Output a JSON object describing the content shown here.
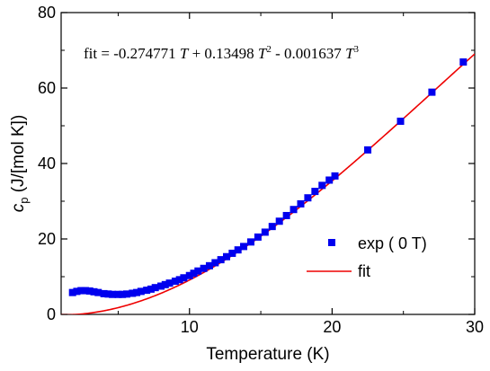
{
  "chart_data": {
    "type": "scatter",
    "xlabel": "Temperature (K)",
    "ylabel": {
      "symbol": "c",
      "subscript": "p",
      "units": " (J/[mol K])"
    },
    "xlim": [
      1,
      30
    ],
    "ylim": [
      0,
      80
    ],
    "x_ticks": [
      {
        "value": 10,
        "label": "10"
      },
      {
        "value": 20,
        "label": "20"
      },
      {
        "value": 30,
        "label": "30"
      }
    ],
    "y_ticks": [
      {
        "value": 0,
        "label": "0"
      },
      {
        "value": 20,
        "label": "20"
      },
      {
        "value": 40,
        "label": "40"
      },
      {
        "value": 60,
        "label": "60"
      },
      {
        "value": 80,
        "label": "80"
      }
    ],
    "grid": false,
    "legend_position": "lower-right",
    "annotation": {
      "prefix": "fit = -0.274771 ",
      "t1": "T",
      "mid1": " + 0.13498 ",
      "t2": "T",
      "exp2": "2",
      "mid2": " - 0.001637 ",
      "t3": "T",
      "exp3": "3"
    },
    "series": [
      {
        "name": "exp ( 0 T)",
        "kind": "markers",
        "color": "#0000ee",
        "x": [
          1.8,
          2.1,
          2.4,
          2.7,
          3.0,
          3.3,
          3.6,
          4.0,
          4.3,
          4.6,
          5.0,
          5.3,
          5.6,
          6.0,
          6.3,
          6.6,
          7.0,
          7.3,
          7.6,
          8.0,
          8.3,
          8.6,
          9.0,
          9.3,
          9.6,
          10.0,
          10.3,
          10.6,
          11.0,
          11.4,
          11.8,
          12.2,
          12.6,
          13.0,
          13.4,
          13.8,
          14.3,
          14.8,
          15.3,
          15.8,
          16.3,
          16.8,
          17.3,
          17.8,
          18.3,
          18.8,
          19.3,
          19.8,
          20.2,
          22.5,
          24.8,
          27.0,
          29.2
        ],
        "y": [
          5.8,
          6.1,
          6.3,
          6.3,
          6.2,
          6.0,
          5.8,
          5.5,
          5.4,
          5.3,
          5.3,
          5.3,
          5.4,
          5.6,
          5.8,
          6.1,
          6.4,
          6.7,
          7.1,
          7.5,
          7.9,
          8.3,
          8.8,
          9.2,
          9.7,
          10.3,
          10.9,
          11.5,
          12.2,
          12.9,
          13.7,
          14.5,
          15.3,
          16.2,
          17.1,
          18.0,
          19.2,
          20.5,
          21.8,
          23.3,
          24.7,
          26.2,
          27.8,
          29.3,
          30.9,
          32.6,
          34.2,
          35.6,
          36.7,
          43.6,
          51.2,
          58.9,
          66.9
        ]
      },
      {
        "name": "fit",
        "kind": "line",
        "color": "#ee0000",
        "coefficients": [
          -0.274771,
          0.13498,
          -0.001637
        ]
      }
    ]
  }
}
